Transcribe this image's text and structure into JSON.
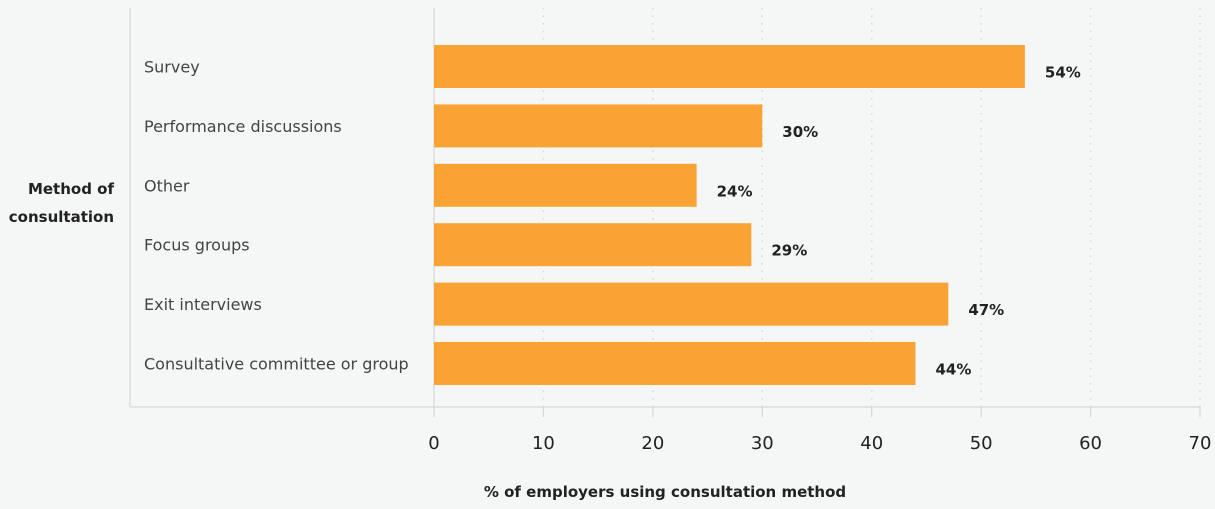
{
  "chart_data": {
    "type": "bar",
    "orientation": "horizontal",
    "title": "",
    "ylabel": [
      "Method of",
      "consultation"
    ],
    "xlabel": "% of employers using consultation method",
    "categories": [
      "Survey",
      "Performance discussions",
      "Other",
      "Focus groups",
      "Exit interviews",
      "Consultative committee or group"
    ],
    "values": [
      54,
      30,
      24,
      29,
      47,
      44
    ],
    "value_labels": [
      "54%",
      "30%",
      "24%",
      "29%",
      "47%",
      "44%"
    ],
    "xlim": [
      0,
      70
    ],
    "xticks": [
      0,
      10,
      20,
      30,
      40,
      50,
      60,
      70
    ],
    "grid": "vertical dotted",
    "bar_color": "#f9a334",
    "legend": "none"
  }
}
